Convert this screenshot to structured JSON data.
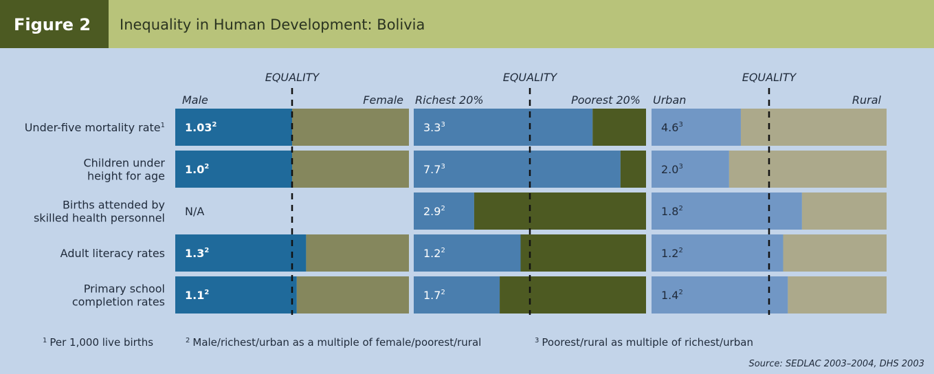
{
  "chart_data": {
    "type": "split-bar",
    "figure_label": "Figure 2",
    "title": "Inequality in Human Development: Bolivia",
    "categories": [
      [
        "Under-five mortality rate"
      ],
      [
        "Children under",
        "height for age"
      ],
      [
        "Births attended by",
        "skilled health personnel"
      ],
      [
        "Adult literacy rates"
      ],
      [
        "Primary school",
        "completion rates"
      ]
    ],
    "category_notes": [
      "1",
      null,
      null,
      null,
      null
    ],
    "xlim": [
      0,
      100
    ],
    "panels": [
      {
        "equality_label": "EQUALITY",
        "left_label": "Male",
        "right_label": "Female",
        "colors": [
          "#1f6a9b",
          "#85875d"
        ],
        "label_color": "#ffffff",
        "values": [
          1.03,
          1.0,
          null,
          1.3,
          1.1
        ],
        "value_labels": [
          "1.03",
          "1.0",
          "N/A",
          "1.3",
          "1.1"
        ],
        "notes": [
          "2",
          "2",
          null,
          "2",
          "2"
        ],
        "shares": [
          50,
          50,
          null,
          56,
          52
        ]
      },
      {
        "equality_label": "EQUALITY",
        "left_label": "Richest 20%",
        "right_label": "Poorest 20%",
        "colors": [
          "#4a7eae",
          "#4d5a22"
        ],
        "label_color": "#ffffff",
        "values": [
          3.3,
          7.7,
          2.9,
          1.2,
          1.7
        ],
        "value_labels": [
          "3.3",
          "7.7",
          "2.9",
          "1.2",
          "1.7"
        ],
        "notes": [
          "3",
          "3",
          "2",
          "2",
          "2"
        ],
        "shares": [
          77,
          89,
          26,
          46,
          37
        ]
      },
      {
        "equality_label": "EQUALITY",
        "left_label": "Urban",
        "right_label": "Rural",
        "colors": [
          "#7197c5",
          "#aca98b"
        ],
        "label_color": "#1f2a3a",
        "values": [
          4.6,
          2.0,
          1.8,
          1.2,
          1.4
        ],
        "value_labels": [
          "4.6",
          "2.0",
          "1.8",
          "1.2",
          "1.4"
        ],
        "notes": [
          "3",
          "3",
          "2",
          "2",
          "2"
        ],
        "shares": [
          38,
          33,
          64,
          56,
          58
        ]
      }
    ],
    "footnotes": [
      {
        "mark": "1",
        "text": "Per 1,000 live births"
      },
      {
        "mark": "2",
        "text": "Male/richest/urban as a multiple of female/poorest/rural"
      },
      {
        "mark": "3",
        "text": "Poorest/rural as multiple of richest/urban"
      }
    ],
    "source": "Source: SEDLAC 2003–2004, DHS 2003"
  }
}
